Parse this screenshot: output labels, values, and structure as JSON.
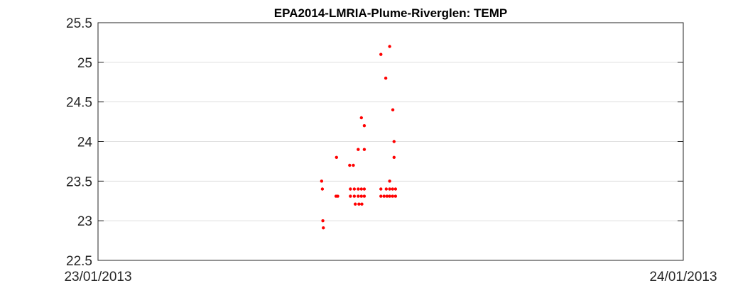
{
  "chart_data": {
    "type": "scatter",
    "title": "EPA2014-LMRIA-Plume-Riverglen: TEMP",
    "xlabel": "",
    "ylabel": "",
    "x_unit": "hours since 23/01/2013 00:00",
    "xlim": [
      0,
      24
    ],
    "ylim": [
      22.5,
      25.5
    ],
    "x_ticks": [
      {
        "value": 0,
        "label": "23/01/2013"
      },
      {
        "value": 24,
        "label": "24/01/2013"
      }
    ],
    "y_ticks": [
      {
        "value": 22.5,
        "label": "22.5"
      },
      {
        "value": 23,
        "label": "23"
      },
      {
        "value": 23.5,
        "label": "23.5"
      },
      {
        "value": 24,
        "label": "24"
      },
      {
        "value": 24.5,
        "label": "24.5"
      },
      {
        "value": 25,
        "label": "25"
      },
      {
        "value": 25.5,
        "label": "25.5"
      }
    ],
    "grid": {
      "y": true,
      "x": false
    },
    "marker_color": "#ff0000",
    "series": [
      {
        "name": "",
        "points": [
          {
            "x": 9.17,
            "y": 23.5
          },
          {
            "x": 9.2,
            "y": 23.4
          },
          {
            "x": 9.22,
            "y": 23.0
          },
          {
            "x": 9.24,
            "y": 22.91
          },
          {
            "x": 9.78,
            "y": 23.8
          },
          {
            "x": 9.76,
            "y": 23.31
          },
          {
            "x": 9.83,
            "y": 23.31
          },
          {
            "x": 10.32,
            "y": 23.7
          },
          {
            "x": 10.47,
            "y": 23.7
          },
          {
            "x": 10.35,
            "y": 23.4
          },
          {
            "x": 10.35,
            "y": 23.31
          },
          {
            "x": 10.51,
            "y": 23.4
          },
          {
            "x": 10.51,
            "y": 23.31
          },
          {
            "x": 10.55,
            "y": 23.21
          },
          {
            "x": 10.67,
            "y": 23.9
          },
          {
            "x": 10.67,
            "y": 23.4
          },
          {
            "x": 10.67,
            "y": 23.31
          },
          {
            "x": 10.7,
            "y": 23.21
          },
          {
            "x": 10.8,
            "y": 24.3
          },
          {
            "x": 10.8,
            "y": 23.4
          },
          {
            "x": 10.8,
            "y": 23.31
          },
          {
            "x": 10.82,
            "y": 23.21
          },
          {
            "x": 10.92,
            "y": 24.2
          },
          {
            "x": 10.92,
            "y": 23.9
          },
          {
            "x": 10.92,
            "y": 23.4
          },
          {
            "x": 10.92,
            "y": 23.31
          },
          {
            "x": 11.6,
            "y": 25.1
          },
          {
            "x": 11.6,
            "y": 23.4
          },
          {
            "x": 11.6,
            "y": 23.31
          },
          {
            "x": 11.73,
            "y": 23.31
          },
          {
            "x": 11.8,
            "y": 24.8
          },
          {
            "x": 11.82,
            "y": 23.4
          },
          {
            "x": 11.85,
            "y": 23.31
          },
          {
            "x": 11.96,
            "y": 25.2
          },
          {
            "x": 11.96,
            "y": 23.5
          },
          {
            "x": 11.96,
            "y": 23.4
          },
          {
            "x": 11.96,
            "y": 23.31
          },
          {
            "x": 12.09,
            "y": 24.4
          },
          {
            "x": 12.08,
            "y": 23.4
          },
          {
            "x": 12.08,
            "y": 23.31
          },
          {
            "x": 12.14,
            "y": 24.0
          },
          {
            "x": 12.14,
            "y": 23.8
          },
          {
            "x": 12.2,
            "y": 23.4
          },
          {
            "x": 12.2,
            "y": 23.31
          }
        ]
      }
    ]
  }
}
